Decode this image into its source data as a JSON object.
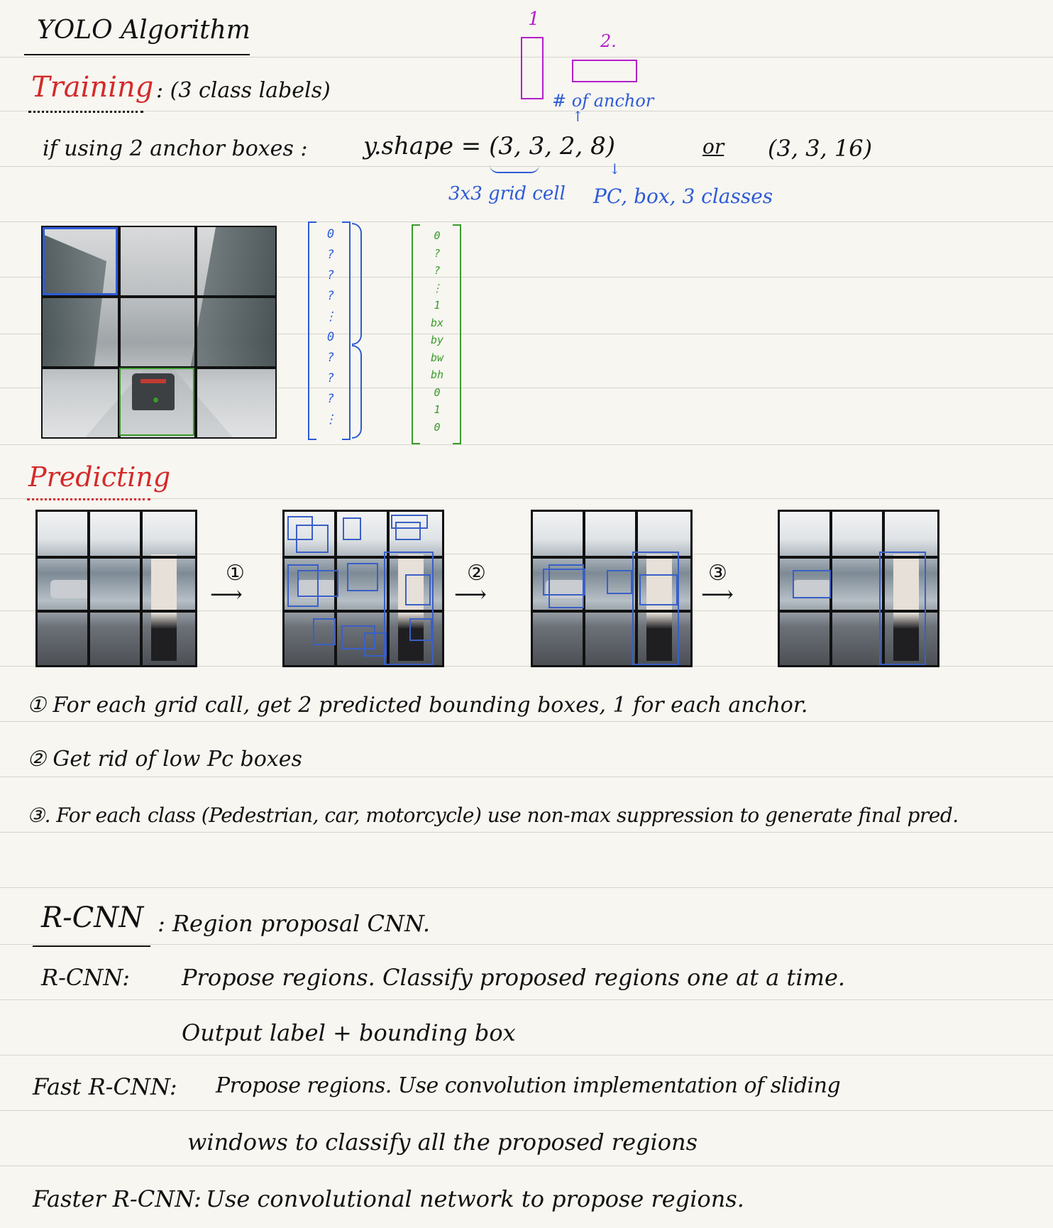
{
  "title": "YOLO Algorithm",
  "training": {
    "heading": "Training",
    "note": ": (3 class labels)",
    "anchor_line": "if using 2 anchor boxes :",
    "y_shape": "y.shape = (3, 3, 2, 8)",
    "or": "or",
    "alt_shape": "(3, 3, 16)",
    "grid_label": "3x3 grid cell",
    "pc_label": "PC, box, 3 classes",
    "anchor_label": "# of anchor",
    "anchor_1": "1",
    "anchor_2": "2.",
    "vector_blue": [
      "0",
      "?",
      "?",
      "?",
      "⋮",
      "0",
      "?",
      "?",
      "?",
      "⋮"
    ],
    "vector_green": [
      "0",
      "?",
      "?",
      "⋮",
      "1",
      "bx",
      "by",
      "bw",
      "bh",
      "0",
      "1",
      "0"
    ]
  },
  "predicting": {
    "heading": "Predicting",
    "step_markers": [
      "①",
      "②",
      "③"
    ],
    "steps": [
      "① For each grid call, get 2 predicted bounding boxes, 1 for each anchor.",
      "② Get rid of low Pc boxes",
      "③. For each class (Pedestrian, car, motorcycle) use non-max suppression to generate final pred."
    ]
  },
  "rcnn": {
    "heading": "R-CNN",
    "heading_def": ": Region proposal CNN.",
    "rows": [
      {
        "label": "R-CNN:",
        "text": "Propose regions. Classify proposed regions one at a time."
      },
      {
        "label": "",
        "text": "Output label + bounding box"
      },
      {
        "label": "Fast R-CNN:",
        "text": "Propose regions. Use convolution implementation of sliding"
      },
      {
        "label": "",
        "text": "windows to classify all the proposed regions"
      },
      {
        "label": "Faster R-CNN:",
        "text": "Use convolutional network to propose regions."
      }
    ]
  },
  "colors": {
    "red": "#d42a2a",
    "blue": "#2d5bd6",
    "purple": "#b21fc9",
    "green": "#3a9a2a"
  }
}
